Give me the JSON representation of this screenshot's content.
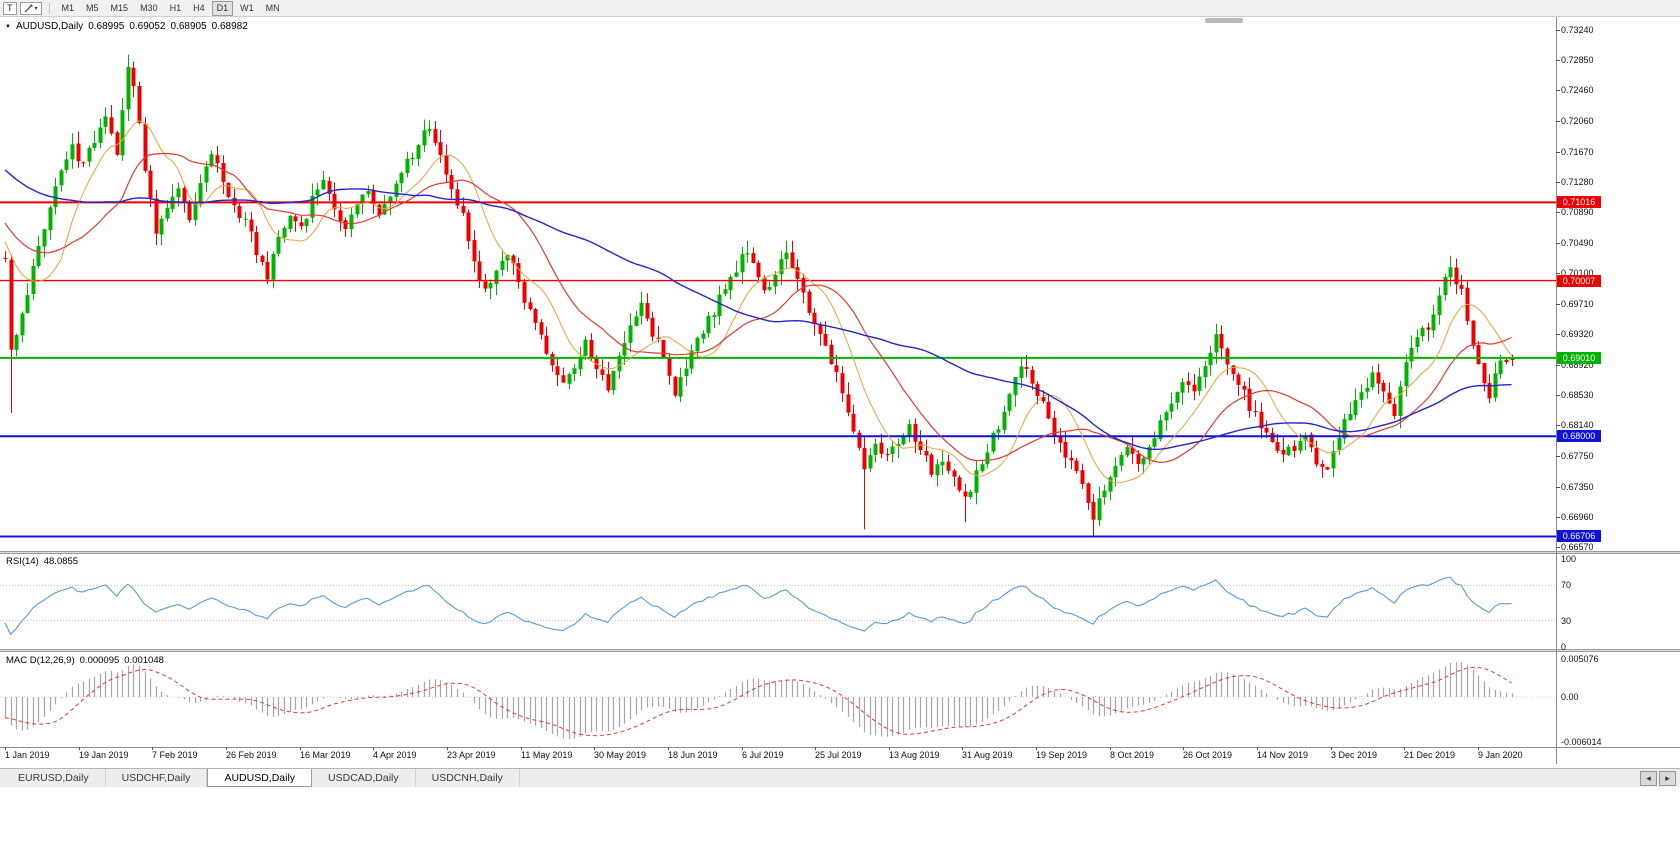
{
  "toolbar": {
    "text_tool_label": "T",
    "timeframes": [
      "M1",
      "M5",
      "M15",
      "M30",
      "H1",
      "H4",
      "D1",
      "W1",
      "MN"
    ],
    "active_timeframe": "D1"
  },
  "chart": {
    "title": "AUDUSD,Daily",
    "ohlc": {
      "open": "0.68995",
      "high": "0.69052",
      "low": "0.68905",
      "close": "0.68982"
    },
    "price_axis": [
      "0.73240",
      "0.72850",
      "0.72460",
      "0.72060",
      "0.71670",
      "0.71280",
      "0.70890",
      "0.70490",
      "0.70100",
      "0.69710",
      "0.69320",
      "0.68920",
      "0.68530",
      "0.68140",
      "0.67750",
      "0.67350",
      "0.66960",
      "0.66570"
    ],
    "time_axis": [
      "1 Jan 2019",
      "19 Jan 2019",
      "7 Feb 2019",
      "26 Feb 2019",
      "16 Mar 2019",
      "4 Apr 2019",
      "23 Apr 2019",
      "11 May 2019",
      "30 May 2019",
      "18 Jun 2019",
      "6 Jul 2019",
      "25 Jul 2019",
      "13 Aug 2019",
      "31 Aug 2019",
      "19 Sep 2019",
      "8 Oct 2019",
      "26 Oct 2019",
      "14 Nov 2019",
      "3 Dec 2019",
      "21 Dec 2019",
      "9 Jan 2020"
    ]
  },
  "chart_data": {
    "type": "candlestick",
    "symbol": "AUDUSD",
    "timeframe": "Daily",
    "current_ohlc": {
      "open": 0.68995,
      "high": 0.69052,
      "low": 0.68905,
      "close": 0.68982
    },
    "axis_top_price": 0.7324,
    "axis_bottom_price": 0.6657,
    "num_candles": 271,
    "up_color": "#00b300",
    "down_color": "#ee0000",
    "close_waypoints": [
      [
        0,
        0.703
      ],
      [
        1,
        0.691
      ],
      [
        2,
        0.6935
      ],
      [
        4,
        0.6985
      ],
      [
        6,
        0.704
      ],
      [
        8,
        0.709
      ],
      [
        10,
        0.714
      ],
      [
        12,
        0.7175
      ],
      [
        14,
        0.7145
      ],
      [
        16,
        0.7185
      ],
      [
        18,
        0.722
      ],
      [
        20,
        0.717
      ],
      [
        22,
        0.728
      ],
      [
        23,
        0.725
      ],
      [
        25,
        0.715
      ],
      [
        27,
        0.7065
      ],
      [
        29,
        0.7095
      ],
      [
        31,
        0.7115
      ],
      [
        33,
        0.7085
      ],
      [
        35,
        0.713
      ],
      [
        37,
        0.7165
      ],
      [
        39,
        0.713
      ],
      [
        41,
        0.7095
      ],
      [
        43,
        0.708
      ],
      [
        45,
        0.704
      ],
      [
        47,
        0.7005
      ],
      [
        49,
        0.706
      ],
      [
        51,
        0.709
      ],
      [
        53,
        0.7065
      ],
      [
        55,
        0.7105
      ],
      [
        57,
        0.7125
      ],
      [
        59,
        0.709
      ],
      [
        61,
        0.707
      ],
      [
        63,
        0.7105
      ],
      [
        65,
        0.712
      ],
      [
        67,
        0.7085
      ],
      [
        69,
        0.711
      ],
      [
        71,
        0.714
      ],
      [
        73,
        0.7165
      ],
      [
        76,
        0.72
      ],
      [
        78,
        0.7155
      ],
      [
        80,
        0.712
      ],
      [
        82,
        0.7085
      ],
      [
        84,
        0.702
      ],
      [
        86,
        0.699
      ],
      [
        88,
        0.701
      ],
      [
        90,
        0.704
      ],
      [
        92,
        0.6995
      ],
      [
        94,
        0.696
      ],
      [
        96,
        0.6925
      ],
      [
        98,
        0.689
      ],
      [
        100,
        0.687
      ],
      [
        102,
        0.6895
      ],
      [
        104,
        0.692
      ],
      [
        106,
        0.689
      ],
      [
        108,
        0.6865
      ],
      [
        110,
        0.691
      ],
      [
        112,
        0.6935
      ],
      [
        114,
        0.6965
      ],
      [
        116,
        0.6935
      ],
      [
        118,
        0.6905
      ],
      [
        120,
        0.686
      ],
      [
        122,
        0.6895
      ],
      [
        124,
        0.6925
      ],
      [
        126,
        0.695
      ],
      [
        128,
        0.6975
      ],
      [
        130,
        0.7
      ],
      [
        132,
        0.7038
      ],
      [
        134,
        0.702
      ],
      [
        136,
        0.699
      ],
      [
        138,
        0.701
      ],
      [
        140,
        0.7035
      ],
      [
        142,
        0.7
      ],
      [
        144,
        0.6965
      ],
      [
        146,
        0.6935
      ],
      [
        148,
        0.69
      ],
      [
        150,
        0.6855
      ],
      [
        152,
        0.68
      ],
      [
        154,
        0.6755
      ],
      [
        156,
        0.6785
      ],
      [
        158,
        0.677
      ],
      [
        160,
        0.679
      ],
      [
        162,
        0.681
      ],
      [
        164,
        0.6785
      ],
      [
        166,
        0.6755
      ],
      [
        168,
        0.6775
      ],
      [
        170,
        0.6745
      ],
      [
        172,
        0.6715
      ],
      [
        174,
        0.675
      ],
      [
        176,
        0.678
      ],
      [
        178,
        0.6815
      ],
      [
        180,
        0.686
      ],
      [
        182,
        0.6885
      ],
      [
        184,
        0.6875
      ],
      [
        186,
        0.684
      ],
      [
        188,
        0.6805
      ],
      [
        190,
        0.6775
      ],
      [
        192,
        0.675
      ],
      [
        194,
        0.672
      ],
      [
        195,
        0.67
      ],
      [
        197,
        0.6735
      ],
      [
        199,
        0.676
      ],
      [
        201,
        0.6785
      ],
      [
        203,
        0.676
      ],
      [
        205,
        0.679
      ],
      [
        207,
        0.682
      ],
      [
        209,
        0.6845
      ],
      [
        211,
        0.687
      ],
      [
        213,
        0.6855
      ],
      [
        215,
        0.6885
      ],
      [
        217,
        0.6925
      ],
      [
        219,
        0.6895
      ],
      [
        221,
        0.6865
      ],
      [
        223,
        0.684
      ],
      [
        225,
        0.6815
      ],
      [
        227,
        0.679
      ],
      [
        229,
        0.6775
      ],
      [
        231,
        0.6785
      ],
      [
        233,
        0.68
      ],
      [
        235,
        0.677
      ],
      [
        237,
        0.6755
      ],
      [
        239,
        0.68
      ],
      [
        241,
        0.6835
      ],
      [
        243,
        0.686
      ],
      [
        245,
        0.688
      ],
      [
        247,
        0.6855
      ],
      [
        249,
        0.683
      ],
      [
        251,
        0.6895
      ],
      [
        253,
        0.692
      ],
      [
        255,
        0.6945
      ],
      [
        257,
        0.6975
      ],
      [
        259,
        0.7025
      ],
      [
        260,
        0.7
      ],
      [
        261,
        0.6985
      ],
      [
        262,
        0.695
      ],
      [
        263,
        0.692
      ],
      [
        264,
        0.6895
      ],
      [
        265,
        0.687
      ],
      [
        266,
        0.685
      ],
      [
        267,
        0.688
      ],
      [
        268,
        0.69
      ],
      [
        269,
        0.6895
      ],
      [
        270,
        0.68982
      ]
    ],
    "wick_overrides": [
      {
        "i": 1,
        "low": 0.683
      },
      {
        "i": 22,
        "high": 0.7292
      },
      {
        "i": 154,
        "low": 0.668
      },
      {
        "i": 172,
        "low": 0.6689
      },
      {
        "i": 195,
        "low": 0.6671
      },
      {
        "i": 259,
        "high": 0.7032
      }
    ],
    "moving_averages": [
      {
        "period": 10,
        "color": "#e8a33b",
        "width": 1
      },
      {
        "period": 21,
        "color": "#e53935",
        "width": 1.2
      },
      {
        "period": 55,
        "color": "#2525cc",
        "width": 1.4
      }
    ],
    "levels": [
      {
        "price": 0.71016,
        "label": "0.71016",
        "color": "#ee0000",
        "width": 2
      },
      {
        "price": 0.70007,
        "label": "0.70007",
        "color": "#ee0000",
        "width": 1.4
      },
      {
        "price": 0.6901,
        "label": "0.69010",
        "color": "#00b300",
        "width": 2
      },
      {
        "price": 0.68,
        "label": "0.68000",
        "color": "#1111dd",
        "width": 2
      },
      {
        "price": 0.66706,
        "label": "0.66706",
        "color": "#1111dd",
        "width": 2
      }
    ]
  },
  "rsi": {
    "name": "RSI(14)",
    "value": "48.0855",
    "color": "#5a9bd4",
    "levels": [
      70,
      30
    ],
    "axis": [
      {
        "label": "100",
        "value": 100
      },
      {
        "label": "70",
        "value": 70
      },
      {
        "label": "30",
        "value": 30
      },
      {
        "label": "0",
        "value": 0
      }
    ]
  },
  "macd": {
    "name": "MAC D(12,26,9)",
    "value_main": "0.000095",
    "value_signal": "0.001048",
    "histogram_color": "#a6a6a6",
    "signal_color": "#e53935",
    "axis": [
      {
        "label": "0.005076",
        "value": 0.005076
      },
      {
        "label": "0.00",
        "value": 0
      },
      {
        "label": "-0.006014",
        "value": -0.006014
      }
    ]
  },
  "tabs": {
    "items": [
      "EURUSD,Daily",
      "USDCHF,Daily",
      "AUDUSD,Daily",
      "USDCAD,Daily",
      "USDCNH,Daily"
    ],
    "active": "AUDUSD,Daily"
  }
}
